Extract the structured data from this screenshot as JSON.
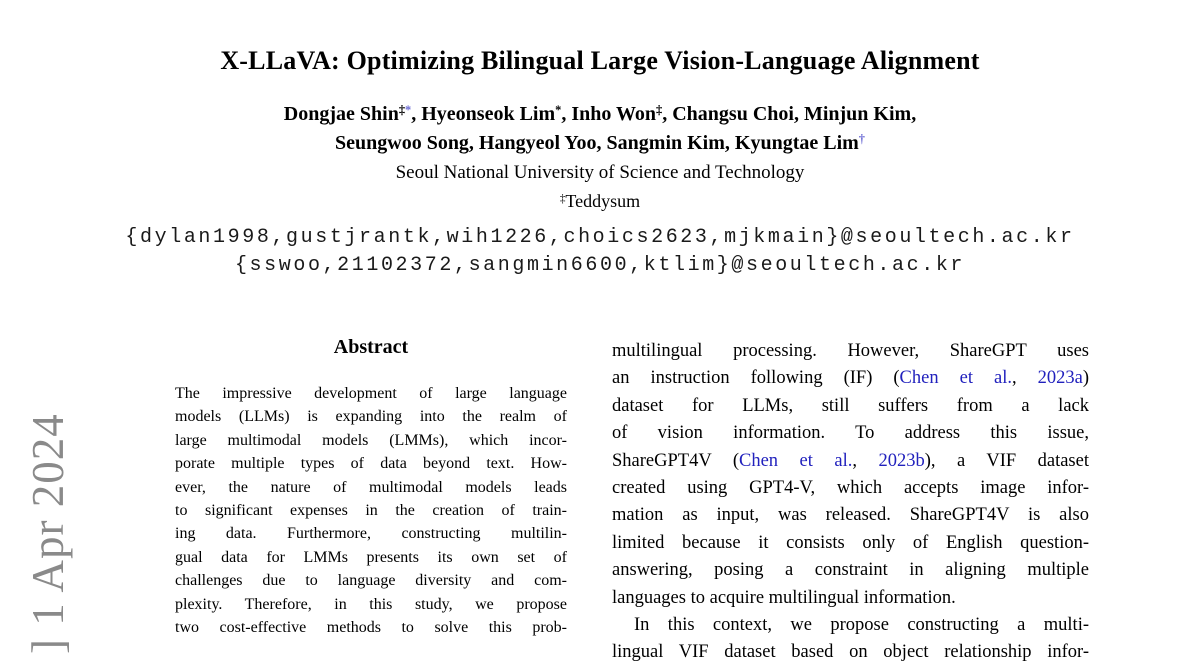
{
  "colors": {
    "citation_blue": "#2121bd",
    "footnote_marker_blue": "#6a6ad4",
    "watermark_gray": "#8a8a8a",
    "body_text": "#000000"
  },
  "watermark": {
    "text": "] 1 Apr 2024"
  },
  "header": {
    "title": "X-LLaVA: Optimizing Bilingual Large Vision-Language Alignment",
    "author_lines": [
      {
        "segs": [
          {
            "t": "Dongjae Shin"
          },
          {
            "t": "‡",
            "sup": true
          },
          {
            "t": "*",
            "sup": true,
            "s": "marker"
          },
          {
            "t": ", Hyeonseok Lim"
          },
          {
            "t": "*",
            "sup": true
          },
          {
            "t": ", Inho Won"
          },
          {
            "t": "‡",
            "sup": true
          },
          {
            "t": ", Changsu Choi, Minjun Kim,"
          }
        ]
      },
      {
        "segs": [
          {
            "t": "Seungwoo Song, Hangyeol Yoo, Sangmin Kim, Kyungtae Lim"
          },
          {
            "t": "†",
            "sup": true,
            "s": "marker"
          }
        ]
      }
    ],
    "affiliation": "Seoul National University of Science and Technology",
    "affiliation2": {
      "segs": [
        {
          "t": "‡",
          "sup": true
        },
        {
          "t": "Teddysum"
        }
      ]
    },
    "emails": [
      "{dylan1998,gustjrantk,wih1226,choics2623,mjkmain}@seoultech.ac.kr",
      "{sswoo,21102372,sangmin6600,ktlim}@seoultech.ac.kr"
    ]
  },
  "abstract": {
    "heading": "Abstract",
    "lines": [
      {
        "segs": [
          {
            "t": "The impressive development of large language"
          }
        ]
      },
      {
        "segs": [
          {
            "t": "models (LLMs) is expanding into the realm of"
          }
        ]
      },
      {
        "segs": [
          {
            "t": "large multimodal models (LMMs), which incor-"
          }
        ]
      },
      {
        "segs": [
          {
            "t": "porate multiple types of data beyond text. How-"
          }
        ]
      },
      {
        "segs": [
          {
            "t": "ever, the nature of multimodal models leads"
          }
        ]
      },
      {
        "segs": [
          {
            "t": "to significant expenses in the creation of train-"
          }
        ]
      },
      {
        "segs": [
          {
            "t": "ing data. Furthermore, constructing multilin-"
          }
        ]
      },
      {
        "segs": [
          {
            "t": "gual data for LMMs presents its own set of"
          }
        ]
      },
      {
        "segs": [
          {
            "t": "challenges due to language diversity and com-"
          }
        ]
      },
      {
        "segs": [
          {
            "t": "plexity. Therefore, in this study, we propose"
          }
        ]
      },
      {
        "segs": [
          {
            "t": "two cost-effective methods to solve this prob-"
          }
        ]
      }
    ]
  },
  "right_column": {
    "lines": [
      {
        "segs": [
          {
            "t": "multilingual processing. However, ShareGPT uses"
          }
        ]
      },
      {
        "segs": [
          {
            "t": "an instruction following (IF) ("
          },
          {
            "t": "Chen et al.",
            "s": "cite"
          },
          {
            "t": ", "
          },
          {
            "t": "2023a",
            "s": "cite"
          },
          {
            "t": ")"
          }
        ]
      },
      {
        "segs": [
          {
            "t": "dataset for LLMs, still suffers from a lack"
          }
        ]
      },
      {
        "segs": [
          {
            "t": "of vision information. To address this issue,"
          }
        ]
      },
      {
        "segs": [
          {
            "t": "ShareGPT4V ("
          },
          {
            "t": "Chen et al.",
            "s": "cite"
          },
          {
            "t": ", "
          },
          {
            "t": "2023b",
            "s": "cite"
          },
          {
            "t": "), a VIF dataset"
          }
        ]
      },
      {
        "segs": [
          {
            "t": "created using GPT4-V, which accepts image infor-"
          }
        ]
      },
      {
        "segs": [
          {
            "t": "mation as input, was released. ShareGPT4V is also"
          }
        ]
      },
      {
        "segs": [
          {
            "t": "limited because it consists only of English question-"
          }
        ]
      },
      {
        "segs": [
          {
            "t": "answering, posing a constraint in aligning multiple"
          }
        ]
      },
      {
        "segs": [
          {
            "t": "languages to acquire multilingual information."
          }
        ],
        "end": true
      },
      {
        "segs": [
          {
            "t": "In this context, we propose constructing a multi-"
          }
        ],
        "indent": true
      },
      {
        "segs": [
          {
            "t": "lingual VIF dataset based on object relationship infor-"
          }
        ]
      }
    ]
  }
}
